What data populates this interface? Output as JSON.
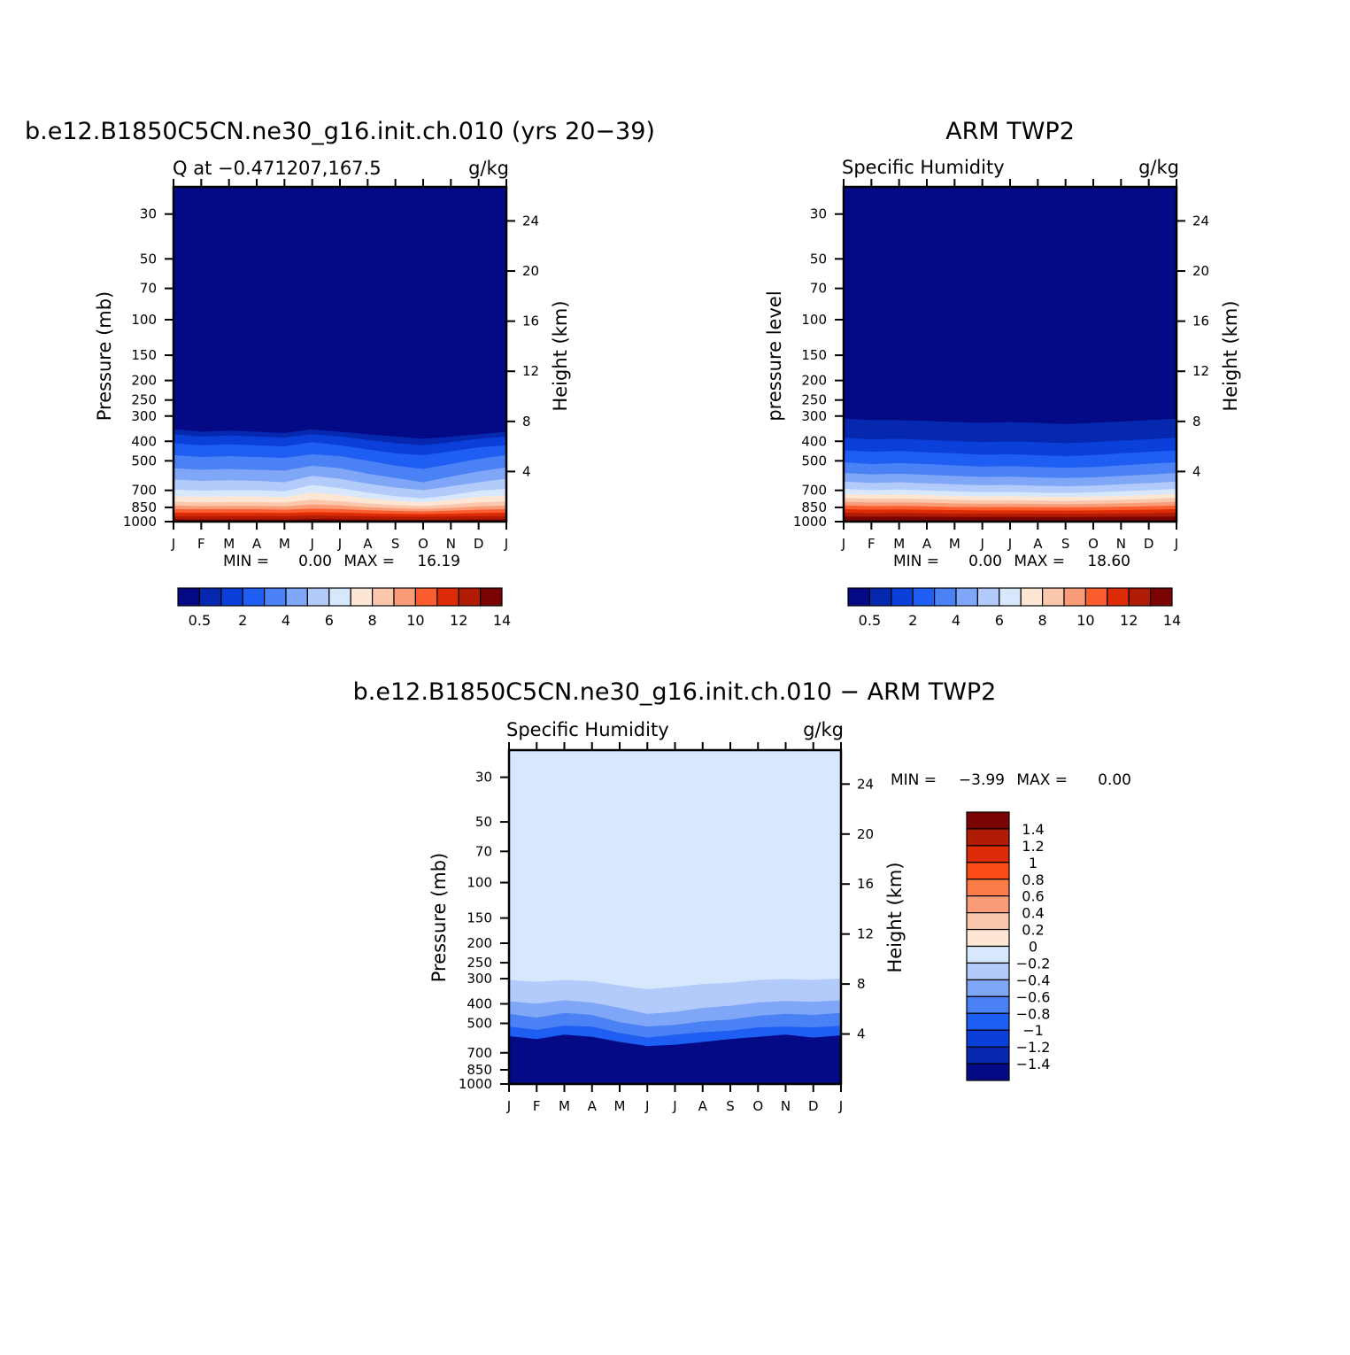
{
  "chart_data": [
    {
      "type": "heatmap",
      "panel": "model",
      "title": "b.e12.B1850C5CN.ne30_g16.init.ch.010 (yrs 20−39)",
      "subtitle_left": "Q at −0.471207,167.5",
      "subtitle_right": "g/kg",
      "ylabel": "Pressure (mb)",
      "ylabel_right": "Height (km)",
      "x": [
        "J",
        "F",
        "M",
        "A",
        "M",
        "J",
        "J",
        "A",
        "S",
        "O",
        "N",
        "D",
        "J"
      ],
      "y_ticks": [
        "30",
        "50",
        "70",
        "100",
        "150",
        "200",
        "250",
        "300",
        "400",
        "500",
        "700",
        "850",
        "1000"
      ],
      "y_right_ticks": [
        "24",
        "20",
        "16",
        "12",
        "8",
        "4"
      ],
      "stats": {
        "min_label": "MIN =",
        "min": "0.00",
        "max_label": "MAX =",
        "max": "16.19"
      },
      "colorbar": {
        "orientation": "horizontal",
        "labels": [
          "0.5",
          "2",
          "4",
          "6",
          "8",
          "10",
          "12",
          "14"
        ]
      },
      "levels_p": [
        400,
        450,
        520,
        600,
        660,
        700,
        750,
        790,
        820,
        850,
        880,
        910,
        940,
        970
      ],
      "profiles": [
        [
          350,
          370,
          410,
          470,
          545,
          620,
          695,
          750,
          800,
          835,
          870,
          905,
          940,
          975
        ],
        [
          360,
          380,
          420,
          480,
          555,
          630,
          705,
          755,
          805,
          840,
          872,
          907,
          942,
          978
        ],
        [
          355,
          375,
          415,
          475,
          550,
          625,
          700,
          752,
          802,
          838,
          871,
          906,
          941,
          977
        ],
        [
          360,
          380,
          420,
          480,
          555,
          630,
          700,
          752,
          802,
          838,
          871,
          906,
          941,
          977
        ],
        [
          365,
          385,
          425,
          485,
          560,
          640,
          710,
          758,
          807,
          843,
          875,
          909,
          943,
          980
        ],
        [
          350,
          370,
          405,
          465,
          530,
          595,
          660,
          720,
          780,
          825,
          865,
          900,
          935,
          972
        ],
        [
          360,
          380,
          420,
          475,
          545,
          615,
          685,
          740,
          795,
          833,
          870,
          905,
          940,
          976
        ],
        [
          370,
          395,
          440,
          500,
          580,
          650,
          720,
          770,
          815,
          850,
          880,
          912,
          945,
          980
        ],
        [
          380,
          410,
          460,
          530,
          610,
          680,
          750,
          790,
          830,
          860,
          888,
          918,
          948,
          982
        ],
        [
          390,
          420,
          470,
          550,
          640,
          700,
          770,
          805,
          840,
          868,
          893,
          921,
          950,
          983
        ],
        [
          380,
          405,
          450,
          520,
          600,
          670,
          740,
          780,
          825,
          858,
          885,
          915,
          946,
          981
        ],
        [
          370,
          390,
          430,
          490,
          565,
          640,
          705,
          755,
          805,
          842,
          875,
          909,
          943,
          979
        ],
        [
          360,
          380,
          420,
          470,
          540,
          615,
          690,
          745,
          798,
          836,
          870,
          905,
          940,
          976
        ]
      ]
    },
    {
      "type": "heatmap",
      "panel": "observation",
      "title": "ARM TWP2",
      "subtitle_left": "Specific Humidity",
      "subtitle_right": "g/kg",
      "ylabel": "pressure level",
      "ylabel_right": "Height (km)",
      "x": [
        "J",
        "F",
        "M",
        "A",
        "M",
        "J",
        "J",
        "A",
        "S",
        "O",
        "N",
        "D",
        "J"
      ],
      "y_ticks": [
        "30",
        "50",
        "70",
        "100",
        "150",
        "200",
        "250",
        "300",
        "400",
        "500",
        "700",
        "850",
        "1000"
      ],
      "y_right_ticks": [
        "24",
        "20",
        "16",
        "12",
        "8",
        "4"
      ],
      "stats": {
        "min_label": "MIN =",
        "min": "0.00",
        "max_label": "MAX =",
        "max": "18.60"
      },
      "colorbar": {
        "orientation": "horizontal",
        "labels": [
          "0.5",
          "2",
          "4",
          "6",
          "8",
          "10",
          "12",
          "14"
        ]
      },
      "levels_p": [
        300,
        380,
        440,
        510,
        580,
        640,
        700,
        740,
        775,
        810,
        845,
        880,
        915,
        950
      ],
      "profiles": [
        [
          310,
          385,
          445,
          510,
          575,
          635,
          690,
          730,
          765,
          800,
          835,
          870,
          905,
          945
        ],
        [
          315,
          392,
          452,
          520,
          585,
          645,
          700,
          738,
          772,
          806,
          840,
          875,
          910,
          947
        ],
        [
          315,
          390,
          448,
          515,
          580,
          640,
          695,
          735,
          770,
          805,
          838,
          873,
          908,
          946
        ],
        [
          318,
          395,
          455,
          520,
          588,
          648,
          703,
          740,
          775,
          808,
          842,
          876,
          911,
          948
        ],
        [
          322,
          400,
          460,
          528,
          595,
          655,
          710,
          748,
          782,
          815,
          848,
          880,
          915,
          950
        ],
        [
          325,
          405,
          468,
          535,
          602,
          662,
          716,
          752,
          786,
          818,
          850,
          882,
          916,
          951
        ],
        [
          322,
          402,
          465,
          532,
          600,
          660,
          714,
          750,
          785,
          817,
          849,
          881,
          915,
          950
        ],
        [
          325,
          405,
          470,
          538,
          606,
          666,
          720,
          755,
          789,
          820,
          851,
          883,
          917,
          951
        ],
        [
          330,
          410,
          475,
          542,
          610,
          670,
          723,
          757,
          790,
          821,
          852,
          884,
          917,
          951
        ],
        [
          325,
          405,
          470,
          538,
          605,
          665,
          718,
          754,
          787,
          819,
          850,
          882,
          916,
          950
        ],
        [
          320,
          398,
          460,
          528,
          595,
          655,
          710,
          748,
          782,
          814,
          846,
          879,
          913,
          949
        ],
        [
          315,
          392,
          452,
          518,
          586,
          646,
          701,
          740,
          775,
          808,
          841,
          875,
          910,
          947
        ],
        [
          310,
          385,
          445,
          510,
          575,
          635,
          690,
          730,
          765,
          800,
          835,
          870,
          905,
          945
        ]
      ]
    },
    {
      "type": "heatmap",
      "panel": "difference",
      "title": "b.e12.B1850C5CN.ne30_g16.init.ch.010 − ARM TWP2",
      "subtitle_left": "Specific Humidity",
      "subtitle_right": "g/kg",
      "ylabel": "Pressure (mb)",
      "ylabel_right": "Height (km)",
      "x": [
        "J",
        "F",
        "M",
        "A",
        "M",
        "J",
        "J",
        "A",
        "S",
        "O",
        "N",
        "D",
        "J"
      ],
      "y_ticks": [
        "30",
        "50",
        "70",
        "100",
        "150",
        "200",
        "250",
        "300",
        "400",
        "500",
        "700",
        "850",
        "1000"
      ],
      "y_right_ticks": [
        "24",
        "20",
        "16",
        "12",
        "8",
        "4"
      ],
      "stats": {
        "min_label": "MIN =",
        "min": "−3.99",
        "max_label": "MAX =",
        "max": "0.00"
      },
      "colorbar": {
        "orientation": "vertical",
        "labels": [
          "1.4",
          "1.2",
          "1",
          "0.8",
          "0.6",
          "0.4",
          "0.2",
          "0",
          "−0.2",
          "−0.4",
          "−0.6",
          "−0.8",
          "−1",
          "−1.2",
          "−1.4"
        ]
      },
      "levels_p": [
        300,
        380,
        440,
        520,
        600
      ],
      "profiles": [
        [
          305,
          390,
          450,
          520,
          580
        ],
        [
          312,
          400,
          470,
          540,
          600
        ],
        [
          305,
          385,
          445,
          515,
          570
        ],
        [
          310,
          395,
          455,
          520,
          585
        ],
        [
          325,
          420,
          495,
          560,
          620
        ],
        [
          340,
          450,
          520,
          590,
          650
        ],
        [
          330,
          440,
          510,
          570,
          640
        ],
        [
          320,
          420,
          490,
          555,
          620
        ],
        [
          315,
          410,
          480,
          545,
          600
        ],
        [
          305,
          395,
          460,
          525,
          585
        ],
        [
          302,
          388,
          450,
          520,
          570
        ],
        [
          305,
          392,
          455,
          525,
          590
        ],
        [
          300,
          385,
          445,
          515,
          575
        ]
      ]
    }
  ],
  "colors": {
    "seq": [
      "#040a85",
      "#0528ae",
      "#0a3fda",
      "#1e5ef2",
      "#4a81f5",
      "#7fa6f7",
      "#b3cbfa",
      "#d8e8fc",
      "#fde6d4",
      "#fbc7ac",
      "#f99c77",
      "#fb5d2e",
      "#dd2b07",
      "#b01b03",
      "#7a0403"
    ],
    "diff": [
      "#7a0403",
      "#b01b03",
      "#dd2b07",
      "#fb4b16",
      "#fb7b48",
      "#f99c77",
      "#fbc7ac",
      "#fde6d4",
      "#d8e8fc",
      "#b3cbfa",
      "#7fa6f7",
      "#4a81f5",
      "#1e5ef2",
      "#0a3fda",
      "#0528ae",
      "#040a85"
    ]
  }
}
